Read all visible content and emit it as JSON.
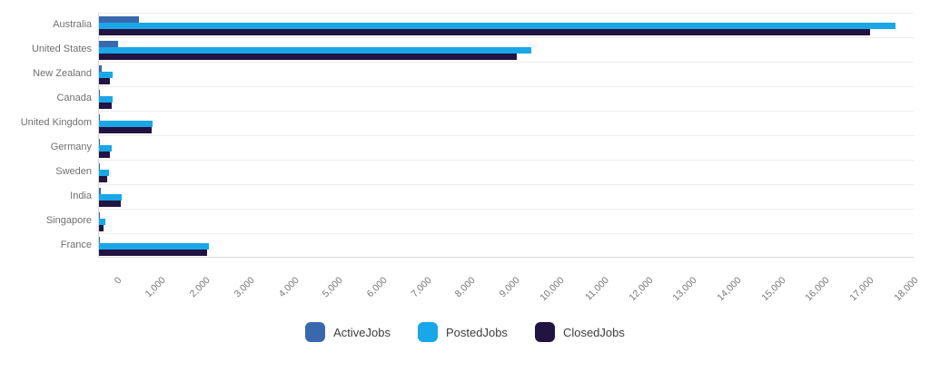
{
  "chart_data": {
    "type": "bar",
    "orientation": "horizontal",
    "title": "",
    "xlabel": "",
    "ylabel": "",
    "categories": [
      "Australia",
      "United States",
      "New Zealand",
      "Canada",
      "United Kingdom",
      "Germany",
      "Sweden",
      "India",
      "Singapore",
      "France"
    ],
    "series": [
      {
        "name": "ActiveJobs",
        "color": "#3a68ae",
        "values": [
          900,
          440,
          70,
          30,
          30,
          30,
          30,
          40,
          30,
          10
        ]
      },
      {
        "name": "PostedJobs",
        "color": "#1aa7e8",
        "values": [
          18000,
          9770,
          310,
          310,
          1210,
          290,
          230,
          510,
          140,
          2480
        ]
      },
      {
        "name": "ClosedJobs",
        "color": "#221442",
        "values": [
          17430,
          9440,
          250,
          290,
          1190,
          250,
          190,
          490,
          100,
          2450
        ]
      }
    ],
    "xlim": [
      0,
      18000
    ],
    "x_tick_step": 1000,
    "x_tick_labels": [
      "0",
      "1,000",
      "2,000",
      "3,000",
      "4,000",
      "5,000",
      "6,000",
      "7,000",
      "8,000",
      "9,000",
      "10,000",
      "11,000",
      "12,000",
      "13,000",
      "14,000",
      "15,000",
      "16,000",
      "17,000",
      "18,000"
    ],
    "grid": "horizontal-row-separators-only",
    "legend_position": "bottom-center"
  },
  "style_colors": {
    "row_separator": "#ededed",
    "axis_line": "#d9d9d9",
    "category_label": "#6f6f6f",
    "tick_label": "#757575",
    "legend_label": "#3d3d3d",
    "background": "#ffffff"
  }
}
